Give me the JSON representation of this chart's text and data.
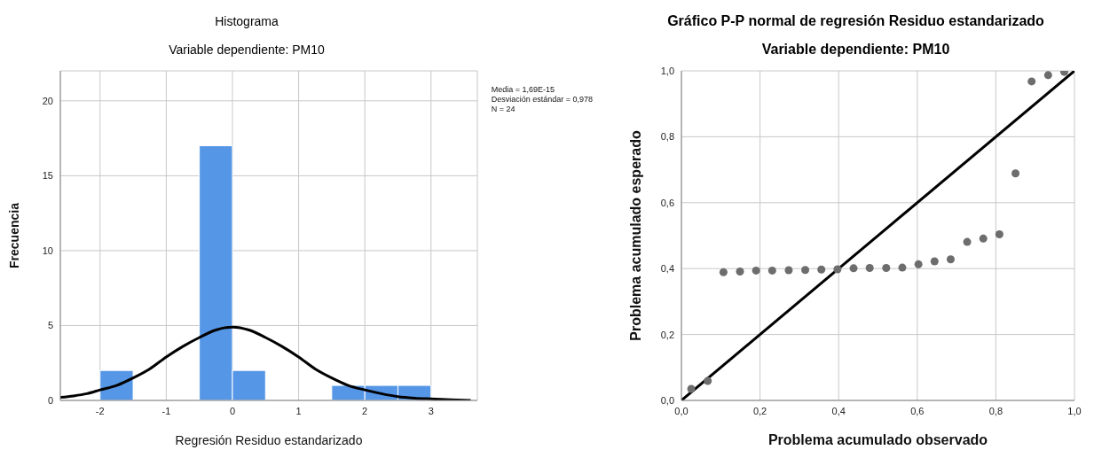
{
  "chart_data": [
    {
      "type": "histogram",
      "title": "Histograma",
      "subtitle": "Variable dependiente: PM10",
      "xlabel": "Regresión Residuo estandarizado",
      "ylabel": "Frecuencia",
      "bins": [
        -2,
        -1.5,
        -1,
        -0.5,
        0,
        0.5,
        1,
        1.5,
        2,
        2.5,
        3
      ],
      "values": [
        2,
        0,
        0,
        17,
        2,
        0,
        0,
        1,
        1,
        1
      ],
      "color": "#5596e6",
      "series": [
        {
          "type": "line",
          "color": "#000000",
          "x": [
            -2.6,
            -2.4,
            -2.2,
            -2,
            -1.75,
            -1.5,
            -1.25,
            -1,
            -0.75,
            -0.5,
            -0.25,
            0,
            0.25,
            0.5,
            0.75,
            1,
            1.25,
            1.5,
            1.75,
            2,
            2.25,
            2.5,
            2.75,
            3,
            3.3,
            3.6
          ],
          "values": [
            0.2,
            0.3,
            0.45,
            0.7,
            1.0,
            1.5,
            2.1,
            2.9,
            3.6,
            4.2,
            4.7,
            4.9,
            4.7,
            4.2,
            3.6,
            2.9,
            2.1,
            1.5,
            1.0,
            0.7,
            0.45,
            0.25,
            0.15,
            0.1,
            0.05,
            0.0
          ]
        }
      ],
      "xlim": [
        -2.6,
        3.7
      ],
      "xticks": [
        -2,
        -1,
        0,
        1,
        2,
        3
      ],
      "ylim": [
        0,
        22
      ],
      "yticks": [
        0,
        5,
        10,
        15,
        20
      ],
      "grid": true,
      "annotations": [
        "Media = 1,69E-15",
        "Desviación estándar = 0,978",
        "N = 24"
      ]
    },
    {
      "type": "scatter",
      "title": "Gráfico P-P normal de regresión Residuo estandarizado",
      "subtitle": "Variable dependiente: PM10",
      "xlabel": "Problema acumulado observado",
      "ylabel": "Problema acumulado esperado",
      "series": [
        {
          "type": "scatter",
          "marker": "circle",
          "color": "#6d6d6d",
          "x": [
            0.025,
            0.067,
            0.107,
            0.149,
            0.19,
            0.231,
            0.273,
            0.315,
            0.356,
            0.397,
            0.438,
            0.479,
            0.521,
            0.562,
            0.603,
            0.644,
            0.685,
            0.727,
            0.768,
            0.809,
            0.85,
            0.891,
            0.933,
            0.974
          ],
          "values": [
            0.035,
            0.059,
            0.389,
            0.391,
            0.394,
            0.394,
            0.395,
            0.396,
            0.397,
            0.398,
            0.401,
            0.402,
            0.402,
            0.403,
            0.413,
            0.422,
            0.428,
            0.481,
            0.491,
            0.504,
            0.689,
            0.968,
            0.987,
            0.997
          ]
        },
        {
          "type": "line",
          "color": "#000000",
          "x": [
            0,
            1
          ],
          "values": [
            0,
            1
          ]
        }
      ],
      "line_style": "solid",
      "xlim": [
        0,
        1
      ],
      "xticks": [
        {
          "value": 0,
          "label": "0,0"
        },
        {
          "value": 0.2,
          "label": "0,2"
        },
        {
          "value": 0.4,
          "label": "0,4"
        },
        {
          "value": 0.6,
          "label": "0,6"
        },
        {
          "value": 0.8,
          "label": "0,8"
        },
        {
          "value": 1,
          "label": "1,0"
        }
      ],
      "ylim": [
        0,
        1
      ],
      "yticks": [
        {
          "value": 0,
          "label": "0,0"
        },
        {
          "value": 0.2,
          "label": "0,2"
        },
        {
          "value": 0.4,
          "label": "0,4"
        },
        {
          "value": 0.6,
          "label": "0,6"
        },
        {
          "value": 0.8,
          "label": "0,8"
        },
        {
          "value": 1,
          "label": "1,0"
        }
      ],
      "grid": true
    }
  ]
}
